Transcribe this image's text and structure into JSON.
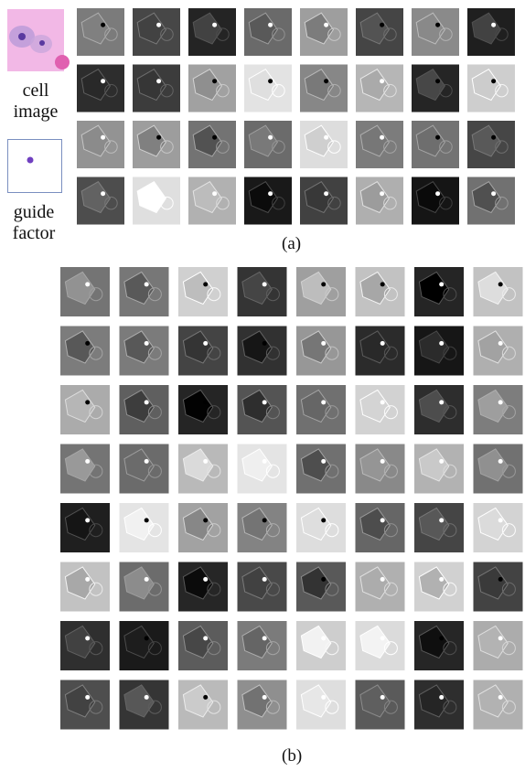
{
  "panel_a": {
    "inputs": [
      "cell image",
      "guide factor"
    ],
    "caption": "(a)"
  },
  "panel_b": {
    "caption": "(b)"
  }
}
